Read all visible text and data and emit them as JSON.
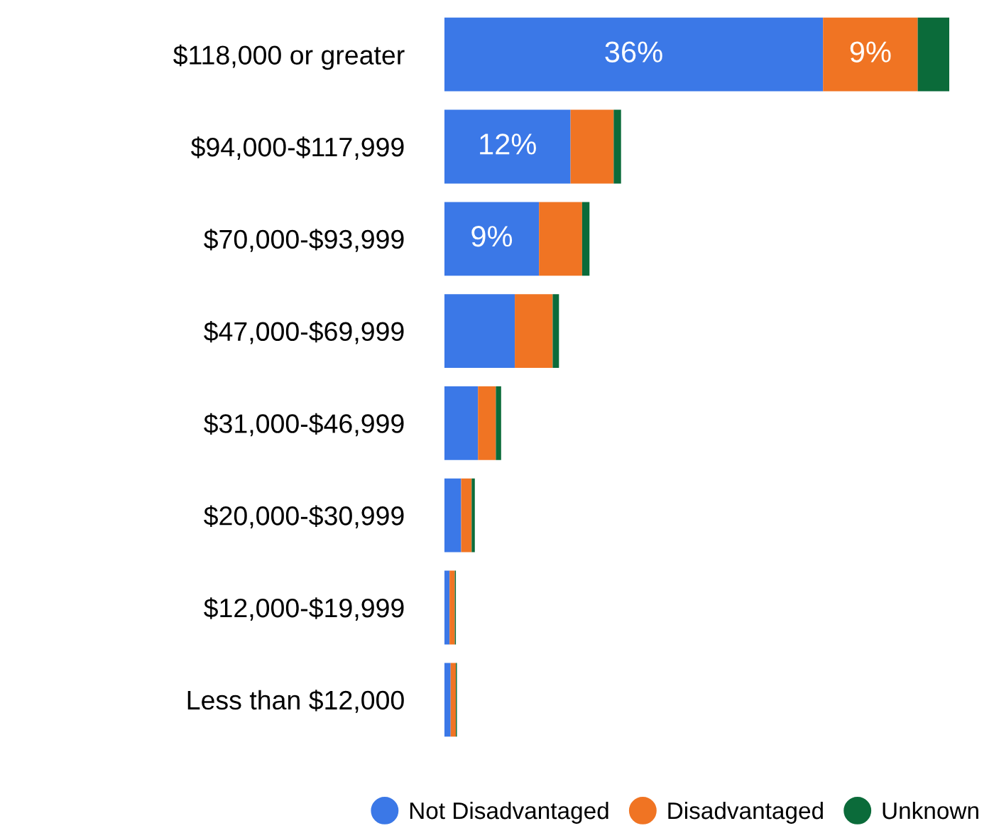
{
  "chart_data": {
    "type": "bar",
    "orientation": "horizontal",
    "stacked": true,
    "legend": "bottom",
    "categories": [
      "$118,000 or greater",
      "$94,000-$117,999",
      "$70,000-$93,999",
      "$47,000-$69,999",
      "$31,000-$46,999",
      "$20,000-$30,999",
      "$12,000-$19,999",
      "Less than $12,000"
    ],
    "series": [
      {
        "name": "Not Disadvantaged",
        "color": "#3b78e7",
        "values": [
          36,
          12,
          9,
          6.7,
          3.2,
          1.6,
          0.5,
          0.6
        ],
        "value_labels": [
          "36%",
          "12%",
          "9%",
          null,
          null,
          null,
          null,
          null
        ]
      },
      {
        "name": "Disadvantaged",
        "color": "#f07423",
        "values": [
          9,
          4.1,
          4.1,
          3.6,
          1.7,
          1.0,
          0.5,
          0.5
        ],
        "value_labels": [
          "9%",
          null,
          null,
          null,
          null,
          null,
          null,
          null
        ]
      },
      {
        "name": "Unknown",
        "color": "#0b6b3a",
        "values": [
          3.0,
          0.7,
          0.7,
          0.6,
          0.5,
          0.3,
          0.1,
          0.1
        ]
      }
    ]
  }
}
